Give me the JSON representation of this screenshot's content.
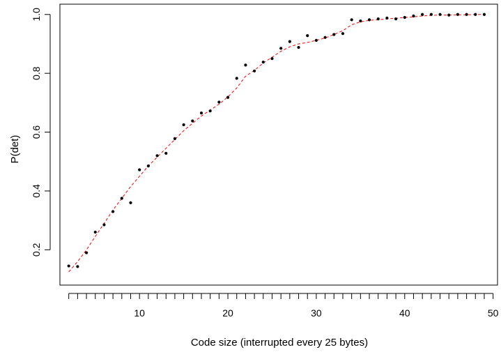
{
  "chart_data": {
    "type": "scatter",
    "title": "",
    "xlabel": "Code size (interrupted every  25  bytes)",
    "ylabel": "P(det)",
    "xlim": [
      1.0,
      50.5
    ],
    "ylim": [
      0.08,
      1.035
    ],
    "x_ticks": [
      10,
      20,
      30,
      40,
      50
    ],
    "y_ticks": [
      0.2,
      0.4,
      0.6,
      0.8,
      1.0
    ],
    "y_tick_labels": [
      "0.2",
      "0.4",
      "0.6",
      "0.8",
      "1.0"
    ],
    "minor_x_ticks_step": 1,
    "minor_x_ticks_range": [
      2,
      50
    ],
    "grid": false,
    "legend": "none",
    "colors": {
      "points": "#000000",
      "fit_line": "#ff0000",
      "axes": "#000000"
    },
    "series": [
      {
        "kind": "points",
        "x": [
          2,
          3,
          4,
          5,
          6,
          7,
          8,
          9,
          10,
          11,
          12,
          13,
          14,
          15,
          16,
          17,
          18,
          19,
          20,
          21,
          22,
          23,
          24,
          25,
          26,
          27,
          28,
          29,
          30,
          31,
          32,
          33,
          34,
          35,
          36,
          37,
          38,
          39,
          40,
          41,
          42,
          43,
          44,
          45,
          46,
          47,
          48,
          49
        ],
        "values": [
          0.145,
          0.143,
          0.19,
          0.26,
          0.285,
          0.33,
          0.375,
          0.36,
          0.472,
          0.485,
          0.52,
          0.528,
          0.578,
          0.625,
          0.638,
          0.665,
          0.672,
          0.702,
          0.718,
          0.783,
          0.828,
          0.808,
          0.838,
          0.85,
          0.885,
          0.908,
          0.888,
          0.928,
          0.912,
          0.922,
          0.932,
          0.935,
          0.982,
          0.978,
          0.982,
          0.985,
          0.988,
          0.985,
          0.99,
          0.995,
          1.0,
          1.0,
          1.0,
          0.998,
          1.0,
          1.0,
          1.0,
          1.0
        ]
      },
      {
        "kind": "smooth-line",
        "style": "dashed",
        "x": [
          2,
          3,
          4,
          5,
          6,
          7,
          8,
          9,
          10,
          11,
          12,
          13,
          14,
          15,
          16,
          17,
          18,
          19,
          20,
          21,
          22,
          23,
          24,
          25,
          26,
          27,
          28,
          29,
          30,
          31,
          32,
          33,
          34,
          35,
          36,
          37,
          38,
          39,
          40,
          41,
          42,
          43,
          44,
          45,
          46,
          47,
          48,
          49
        ],
        "values": [
          0.125,
          0.16,
          0.2,
          0.245,
          0.29,
          0.335,
          0.375,
          0.415,
          0.45,
          0.485,
          0.515,
          0.545,
          0.575,
          0.605,
          0.63,
          0.655,
          0.675,
          0.695,
          0.72,
          0.75,
          0.79,
          0.81,
          0.835,
          0.855,
          0.875,
          0.89,
          0.9,
          0.905,
          0.912,
          0.92,
          0.932,
          0.945,
          0.965,
          0.975,
          0.98,
          0.982,
          0.985,
          0.987,
          0.99,
          0.992,
          0.995,
          0.997,
          0.998,
          0.998,
          0.999,
          0.999,
          1.0,
          1.0
        ]
      }
    ]
  }
}
